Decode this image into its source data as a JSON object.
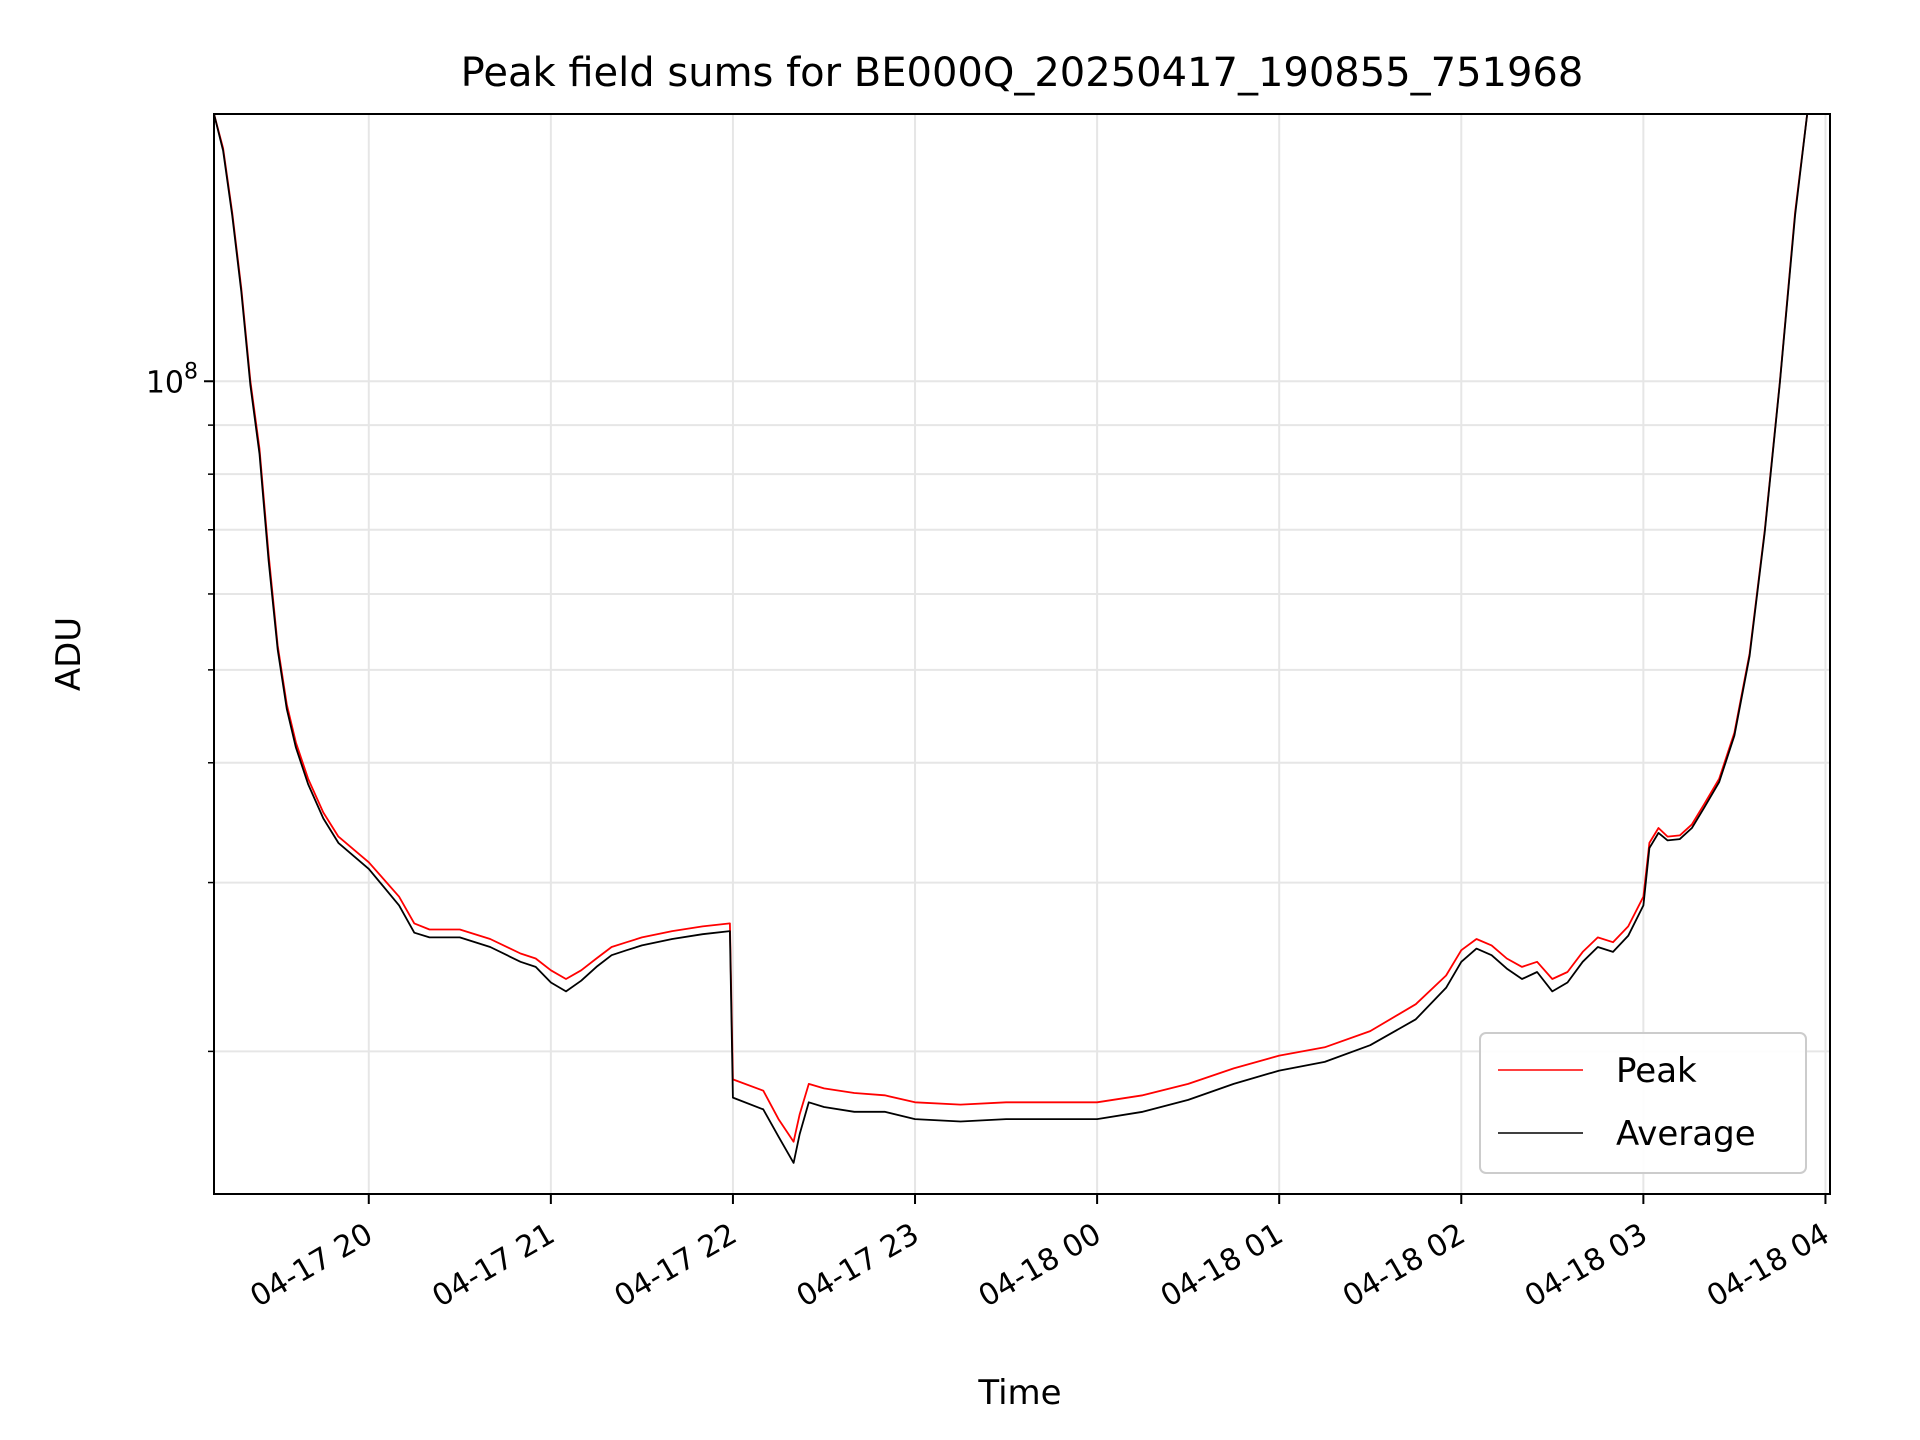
{
  "chart_data": {
    "type": "line",
    "title": "Peak field sums for BE000Q_20250417_190855_751968",
    "xlabel": "Time",
    "ylabel": "ADU",
    "yscale": "log",
    "xlim": [
      "04-17 19:09",
      "04-18 04:00"
    ],
    "ylim": [
      14200000,
      190000000
    ],
    "grid": true,
    "legend_position": "lower-right",
    "x_ticks": [
      "04-17 20",
      "04-17 21",
      "04-17 22",
      "04-17 23",
      "04-18 00",
      "04-18 01",
      "04-18 02",
      "04-18 03",
      "04-18 04"
    ],
    "y_ticks": [
      {
        "label": "10",
        "exponent": "8",
        "value": 100000000
      }
    ],
    "colors": {
      "Peak": "#ff0000",
      "Average": "#000000",
      "grid": "#e6e6e6"
    },
    "x": [
      "04-17 19:09",
      "04-17 19:12",
      "04-17 19:15",
      "04-17 19:18",
      "04-17 19:21",
      "04-17 19:24",
      "04-17 19:27",
      "04-17 19:30",
      "04-17 19:33",
      "04-17 19:36",
      "04-17 19:40",
      "04-17 19:45",
      "04-17 19:50",
      "04-17 20:00",
      "04-17 20:10",
      "04-17 20:15",
      "04-17 20:20",
      "04-17 20:30",
      "04-17 20:40",
      "04-17 20:50",
      "04-17 20:55",
      "04-17 21:00",
      "04-17 21:05",
      "04-17 21:10",
      "04-17 21:15",
      "04-17 21:20",
      "04-17 21:25",
      "04-17 21:30",
      "04-17 21:40",
      "04-17 21:50",
      "04-17 21:59",
      "04-17 22:00",
      "04-17 22:10",
      "04-17 22:15",
      "04-17 22:20",
      "04-17 22:22",
      "04-17 22:25",
      "04-17 22:30",
      "04-17 22:40",
      "04-17 22:50",
      "04-17 23:00",
      "04-17 23:15",
      "04-17 23:30",
      "04-17 23:45",
      "04-18 00:00",
      "04-18 00:15",
      "04-18 00:30",
      "04-18 00:45",
      "04-18 01:00",
      "04-18 01:15",
      "04-18 01:30",
      "04-18 01:45",
      "04-18 01:55",
      "04-18 02:00",
      "04-18 02:05",
      "04-18 02:10",
      "04-18 02:15",
      "04-18 02:20",
      "04-18 02:25",
      "04-18 02:30",
      "04-18 02:35",
      "04-18 02:40",
      "04-18 02:45",
      "04-18 02:50",
      "04-18 02:55",
      "04-18 03:00",
      "04-18 03:02",
      "04-18 03:05",
      "04-18 03:08",
      "04-18 03:12",
      "04-18 03:16",
      "04-18 03:20",
      "04-18 03:25",
      "04-18 03:30",
      "04-18 03:35",
      "04-18 03:40",
      "04-18 03:45",
      "04-18 03:50",
      "04-18 03:54"
    ],
    "series": [
      {
        "name": "Peak",
        "values": [
          190000000,
          175000000,
          150000000,
          125000000,
          100000000,
          85000000,
          66000000,
          53000000,
          46000000,
          42000000,
          38500000,
          35500000,
          33500000,
          31500000,
          29000000,
          27200000,
          26800000,
          26800000,
          26200000,
          25300000,
          25000000,
          24300000,
          23800000,
          24300000,
          25000000,
          25700000,
          26000000,
          26300000,
          26700000,
          27000000,
          27200000,
          18700000,
          18200000,
          17000000,
          16100000,
          17200000,
          18500000,
          18300000,
          18100000,
          18000000,
          17700000,
          17600000,
          17700000,
          17700000,
          17700000,
          18000000,
          18500000,
          19200000,
          19800000,
          20200000,
          21000000,
          22400000,
          24000000,
          25500000,
          26200000,
          25800000,
          25000000,
          24500000,
          24800000,
          23800000,
          24200000,
          25400000,
          26300000,
          26000000,
          27000000,
          29000000,
          33000000,
          34200000,
          33500000,
          33600000,
          34500000,
          36200000,
          38500000,
          43000000,
          52000000,
          70000000,
          100000000,
          150000000,
          190000000
        ]
      },
      {
        "name": "Average",
        "values": [
          190000000,
          174000000,
          149000000,
          124000000,
          99000000,
          84000000,
          65000000,
          52500000,
          45500000,
          41500000,
          38000000,
          35000000,
          33000000,
          31000000,
          28400000,
          26600000,
          26300000,
          26300000,
          25700000,
          24800000,
          24500000,
          23600000,
          23100000,
          23700000,
          24500000,
          25200000,
          25500000,
          25800000,
          26200000,
          26500000,
          26700000,
          17900000,
          17400000,
          16300000,
          15300000,
          16400000,
          17700000,
          17500000,
          17300000,
          17300000,
          17000000,
          16900000,
          17000000,
          17000000,
          17000000,
          17300000,
          17800000,
          18500000,
          19100000,
          19500000,
          20300000,
          21600000,
          23300000,
          24800000,
          25600000,
          25200000,
          24400000,
          23800000,
          24200000,
          23100000,
          23600000,
          24800000,
          25700000,
          25400000,
          26400000,
          28400000,
          32600000,
          33800000,
          33200000,
          33300000,
          34200000,
          35900000,
          38200000,
          42700000,
          51700000,
          69700000,
          99700000,
          149000000,
          190000000
        ]
      }
    ]
  }
}
